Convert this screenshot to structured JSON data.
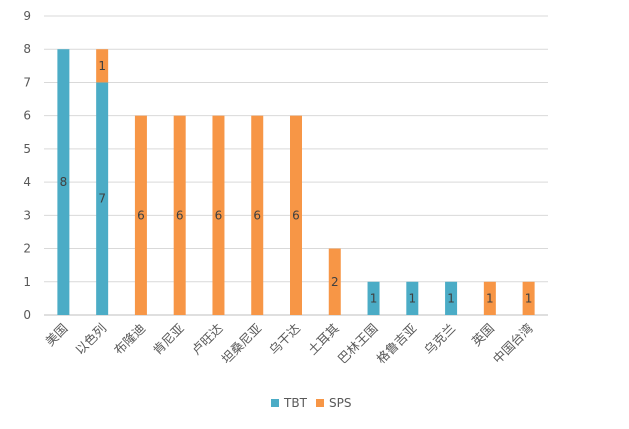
{
  "chart_data": {
    "type": "bar",
    "stacked": true,
    "categories": [
      "美国",
      "以色列",
      "布隆迪",
      "肯尼亚",
      "卢旺达",
      "坦桑尼亚",
      "乌干达",
      "土耳其",
      "巴林王国",
      "格鲁吉亚",
      "乌克兰",
      "英国",
      "中国台湾"
    ],
    "series": [
      {
        "name": "TBT",
        "color": "#4bacc6",
        "values": [
          8,
          7,
          0,
          0,
          0,
          0,
          0,
          0,
          1,
          1,
          1,
          0,
          0
        ]
      },
      {
        "name": "SPS",
        "color": "#f79646",
        "values": [
          0,
          1,
          6,
          6,
          6,
          6,
          6,
          2,
          0,
          0,
          0,
          1,
          1
        ]
      }
    ],
    "yticks": [
      "0",
      "1",
      "2",
      "3",
      "4",
      "5",
      "6",
      "7",
      "8",
      "9"
    ],
    "ylim": [
      0,
      9
    ],
    "grid": true,
    "legend_position": "bottom"
  }
}
